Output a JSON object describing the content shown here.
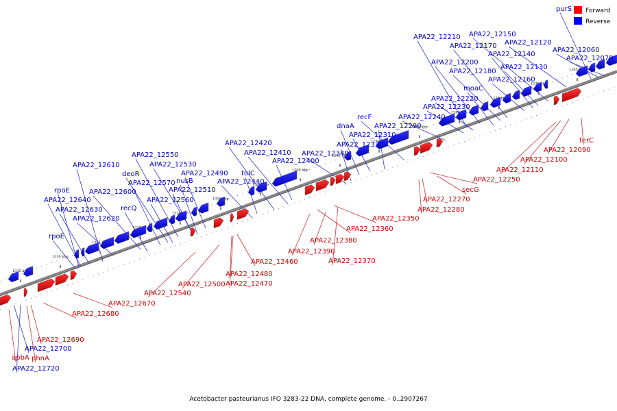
{
  "caption": "Acetobacter pasteurianus IFO 3283-22 DNA, complete genome. - 0..2907267",
  "legend": {
    "forward": {
      "label": "Forward",
      "color": "#ff0000"
    },
    "reverse": {
      "label": "Reverse",
      "color": "#0000ff"
    }
  },
  "ticks": [
    "1335 kbp",
    "1330 kbp",
    "1325 kbp",
    "1320 kbp",
    "1315 kbp",
    "1310 kbp",
    "1305 kbp",
    "1300 kbp",
    "1295 kbp",
    "1290 kbp",
    "1285 kbp",
    "1280 kbp",
    "1275 kbp",
    "1270 kbp",
    "1265 kbp"
  ],
  "reverse_labels": [
    "purS",
    "APA22_12210",
    "APA22_12150",
    "APA22_12170",
    "APA22_12120",
    "APA22_12140",
    "APA22_12060",
    "APA22_12070",
    "APA22_12200",
    "APA22_12130",
    "APA22_12180",
    "APA22_12160",
    "moaC",
    "APA22_12220",
    "APA22_12230",
    "recF",
    "APA22_12240",
    "dnaA",
    "APA22_12290",
    "APA22_12310",
    "APA22_12330",
    "APA22_12340",
    "APA22_12420",
    "APA22_12410",
    "APA22_12400",
    "APA22_12550",
    "APA22_12530",
    "tolC",
    "deoR",
    "APA22_12490",
    "APA22_12440",
    "APA22_12610",
    "APA22_12570",
    "nusB",
    "APA22_12600",
    "APA22_12510",
    "rpoE",
    "APA22_12560",
    "APA22_12640",
    "recQ",
    "APA22_12630",
    "APA22_12620",
    "rpoE",
    "APA22_12700",
    "APA22_12720"
  ],
  "forward_labels": [
    "terC",
    "APA22_12090",
    "APA22_12100",
    "APA22_12110",
    "APA22_12250",
    "secG",
    "APA22_12270",
    "APA22_12280",
    "APA22_12350",
    "APA22_12360",
    "APA22_12380",
    "APA22_12370",
    "APA22_12390",
    "APA22_12460",
    "APA22_12480",
    "APA22_12470",
    "APA22_12500",
    "APA22_12540",
    "APA22_12670",
    "APA22_12680",
    "APA22_12690",
    "phnA",
    "apbA"
  ]
}
